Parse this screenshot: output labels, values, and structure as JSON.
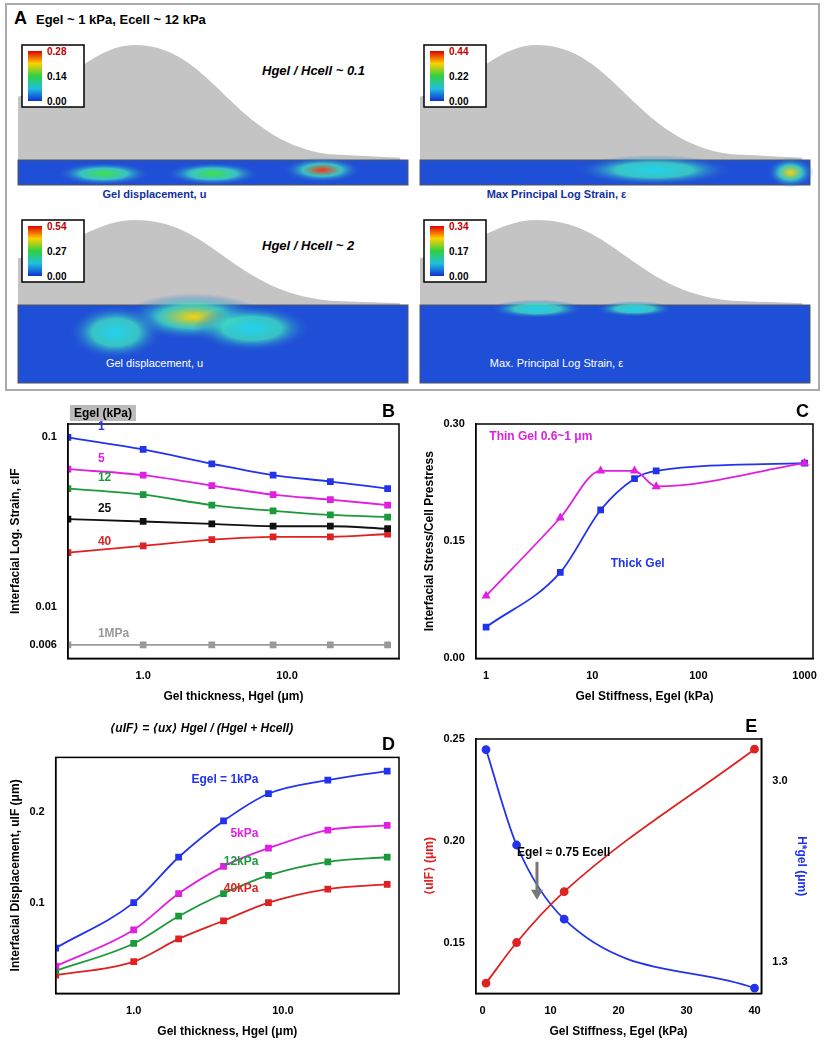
{
  "panel_A": {
    "label": "A",
    "header": "Egel ~ 1 kPa, Ecell ~ 12 kPa",
    "rows": [
      {
        "label": "Hgel / Hcell ~ 0.1",
        "maps": [
          {
            "caption": "Gel displacement, u",
            "colorbar": [
              {
                "value": 0.28,
                "label": "0.28"
              },
              {
                "value": 0.14,
                "label": "0.14"
              },
              {
                "value": 0,
                "label": "0.00"
              }
            ]
          },
          {
            "caption": "Max Principal Log Strain, ε",
            "colorbar": [
              {
                "value": 0.44,
                "label": "0.44"
              },
              {
                "value": 0.22,
                "label": "0.22"
              },
              {
                "value": 0,
                "label": "0.00"
              }
            ]
          }
        ]
      },
      {
        "label": "Hgel / Hcell ~ 2",
        "maps": [
          {
            "caption": "Gel displacement, u",
            "colorbar": [
              {
                "value": 0.54,
                "label": "0.54"
              },
              {
                "value": 0.27,
                "label": "0.27"
              },
              {
                "value": 0,
                "label": "0.00"
              }
            ]
          },
          {
            "caption": "Max. Principal Log Strain, ε",
            "colorbar": [
              {
                "value": 0.34,
                "label": "0.34"
              },
              {
                "value": 0.17,
                "label": "0.17"
              },
              {
                "value": 0,
                "label": "0.00"
              }
            ]
          }
        ]
      }
    ]
  },
  "chart_data": [
    {
      "panel": "B",
      "type": "line",
      "log": true,
      "grid": false,
      "x_label": "Gel thickness, Hgel (μm)",
      "y_label": "Interfacial Log. Strain, εIF",
      "annotations": [
        "Egel (kPa)"
      ],
      "x": [
        0.3,
        1,
        3,
        8,
        20,
        50
      ],
      "xlim": [
        0.3,
        60
      ],
      "xticks": [
        {
          "value": 1,
          "label": "1.0"
        },
        {
          "value": 10,
          "label": "10.0"
        }
      ],
      "ylim": [
        0.005,
        0.12
      ],
      "yticks": [
        0.006,
        0.01,
        0.1
      ],
      "series": [
        {
          "name": "1",
          "color": "#2233ee",
          "marker": "square",
          "values": [
            0.1,
            0.085,
            0.07,
            0.06,
            0.055,
            0.05
          ]
        },
        {
          "name": "5",
          "color": "#e020e0",
          "marker": "square",
          "values": [
            0.065,
            0.06,
            0.052,
            0.046,
            0.043,
            0.04
          ]
        },
        {
          "name": "12",
          "color": "#1a9a3a",
          "marker": "square",
          "values": [
            0.05,
            0.046,
            0.04,
            0.037,
            0.035,
            0.034
          ]
        },
        {
          "name": "25",
          "color": "#111111",
          "marker": "square",
          "values": [
            0.033,
            0.032,
            0.031,
            0.03,
            0.03,
            0.029
          ]
        },
        {
          "name": "40",
          "color": "#dd2222",
          "marker": "square",
          "values": [
            0.021,
            0.023,
            0.025,
            0.026,
            0.026,
            0.027
          ]
        },
        {
          "name": "1MPa",
          "color": "#999999",
          "marker": "square",
          "values": [
            0.006,
            0.006,
            0.006,
            0.006,
            0.006,
            0.006
          ]
        }
      ]
    },
    {
      "panel": "C",
      "type": "line",
      "log": "x",
      "grid": false,
      "x_label": "Gel Stiffness, Egel (kPa)",
      "y_label": "Interfacial Stress/Cell Prestress",
      "x": [
        1,
        5,
        12,
        25,
        40,
        1000
      ],
      "xlim": [
        0.8,
        1200
      ],
      "xticks": [
        1,
        10,
        100,
        1000
      ],
      "ylim": [
        0,
        0.3
      ],
      "yticks": [
        {
          "value": 0,
          "label": "0.00"
        },
        {
          "value": 0.15,
          "label": "0.15"
        },
        {
          "value": 0.3,
          "label": "0.30"
        }
      ],
      "series": [
        {
          "name": "Thin Gel 0.6~1 μm",
          "color": "#e020e0",
          "marker": "triangle",
          "values": [
            0.08,
            0.18,
            0.24,
            0.24,
            0.22,
            0.25
          ]
        },
        {
          "name": "Thick Gel",
          "color": "#2233ee",
          "marker": "square",
          "values": [
            0.04,
            0.11,
            0.19,
            0.23,
            0.24,
            0.25
          ]
        }
      ]
    },
    {
      "panel": "D",
      "type": "line",
      "log": "x",
      "grid": false,
      "title": "⟨uIF⟩ = ⟨ux⟩ Hgel / (Hgel + Hcell)",
      "x_label": "Gel thickness, Hgel (μm)",
      "y_label": "Interfacial Displacement, uIF (μm)",
      "x": [
        0.3,
        1,
        2,
        4,
        8,
        20,
        50
      ],
      "xlim": [
        0.3,
        60
      ],
      "xticks": [
        {
          "value": 1,
          "label": "1.0"
        },
        {
          "value": 10,
          "label": "10.0"
        }
      ],
      "ylim": [
        0,
        0.26
      ],
      "yticks": [
        0.1,
        0.2
      ],
      "series": [
        {
          "name": "Egel = 1kPa",
          "color": "#2233ee",
          "marker": "square",
          "values": [
            0.05,
            0.1,
            0.15,
            0.19,
            0.22,
            0.235,
            0.245
          ]
        },
        {
          "name": "5kPa",
          "color": "#e020e0",
          "marker": "square",
          "values": [
            0.03,
            0.07,
            0.11,
            0.14,
            0.16,
            0.18,
            0.185
          ]
        },
        {
          "name": "12kPa",
          "color": "#1a9a3a",
          "marker": "square",
          "values": [
            0.025,
            0.055,
            0.085,
            0.11,
            0.13,
            0.145,
            0.15
          ]
        },
        {
          "name": "40kPa",
          "color": "#dd2222",
          "marker": "square",
          "values": [
            0.02,
            0.035,
            0.06,
            0.08,
            0.1,
            0.115,
            0.12
          ]
        }
      ]
    },
    {
      "panel": "E",
      "type": "line",
      "grid": false,
      "x_label": "Gel Stiffness, Egel (kPa)",
      "y_label": "⟨uIF⟩ (μm)",
      "y2_label": "H*gel (μm)",
      "annotations": [
        {
          "text": "Egel ≈ 0.75 Ecell",
          "x": 8,
          "y": 0.17
        }
      ],
      "x": [
        0.5,
        5,
        12,
        40
      ],
      "xlim": [
        -1,
        41
      ],
      "xticks": [
        0,
        10,
        20,
        30,
        40
      ],
      "ylim": [
        0.125,
        0.25
      ],
      "yticks": [
        {
          "value": 0.15,
          "label": "0.15"
        },
        {
          "value": 0.2,
          "label": "0.20"
        },
        {
          "value": 0.25,
          "label": "0.25"
        }
      ],
      "y2lim": [
        1.0,
        3.4
      ],
      "y2ticks": [
        1.3,
        {
          "value": 3,
          "label": "3.0"
        }
      ],
      "series": [
        {
          "color": "#dd2222",
          "marker": "circle",
          "values": [
            0.13,
            0.15,
            0.175,
            0.245
          ]
        },
        {
          "color": "#2233ee",
          "marker": "circle",
          "axis": "y2",
          "values": [
            3.3,
            2.4,
            1.7,
            1.05
          ]
        }
      ]
    }
  ]
}
